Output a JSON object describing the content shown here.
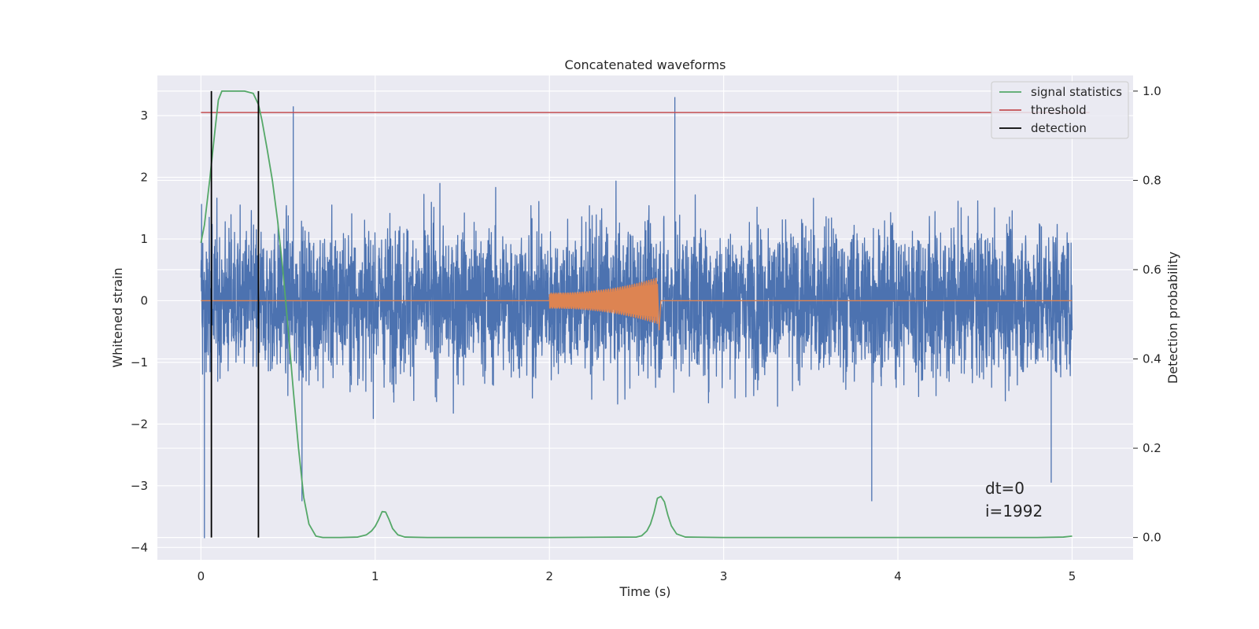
{
  "chart_data": {
    "type": "line",
    "title": "Concatenated waveforms",
    "xlabel": "Time (s)",
    "ylabel": "Whitened strain",
    "ylabel_right": "Detection probability",
    "xlim": [
      -0.25,
      5.35
    ],
    "ylim": [
      -4.2,
      3.65
    ],
    "ylim_right": [
      -0.05,
      1.035
    ],
    "x_ticks": [
      0,
      1,
      2,
      3,
      4,
      5
    ],
    "y_ticks": [
      3,
      2,
      1,
      0,
      -1,
      -2,
      -3,
      -4
    ],
    "y_tick_labels": [
      "3",
      "2",
      "1",
      "0",
      "−1",
      "−2",
      "−3",
      "−4"
    ],
    "y2_ticks": [
      1.0,
      0.8,
      0.6,
      0.4,
      0.2,
      0.0
    ],
    "y2_tick_labels": [
      "1.0",
      "0.8",
      "0.6",
      "0.4",
      "0.2",
      "0.0"
    ],
    "grid": true,
    "legend_position": "top-right",
    "series": [
      {
        "name": "",
        "kind": "noise",
        "color": "#4c72b0",
        "x_range": [
          0,
          5
        ],
        "approx_amplitude": 1.25,
        "extremes": [
          [
            0.02,
            -3.85
          ],
          [
            0.58,
            -3.25
          ],
          [
            0.53,
            3.15
          ],
          [
            2.72,
            3.3
          ],
          [
            3.07,
            0.75
          ],
          [
            3.85,
            -3.25
          ],
          [
            4.88,
            -2.95
          ]
        ]
      },
      {
        "name": "",
        "kind": "chirp",
        "color": "#dd8452",
        "x_range": [
          0,
          5
        ],
        "burst_start": 2.0,
        "burst_end": 2.62,
        "burst_peak": 0.38
      },
      {
        "name": "signal statistics",
        "axis": "right",
        "color": "#55a868",
        "x": [
          0.0,
          0.02,
          0.05,
          0.08,
          0.1,
          0.12,
          0.15,
          0.2,
          0.25,
          0.3,
          0.33,
          0.35,
          0.38,
          0.41,
          0.44,
          0.47,
          0.5,
          0.53,
          0.56,
          0.59,
          0.62,
          0.66,
          0.7,
          0.8,
          0.9,
          0.95,
          0.98,
          1.0,
          1.02,
          1.04,
          1.06,
          1.08,
          1.1,
          1.13,
          1.17,
          1.3,
          2.0,
          2.5,
          2.53,
          2.56,
          2.58,
          2.6,
          2.62,
          2.64,
          2.66,
          2.68,
          2.7,
          2.73,
          2.78,
          3.0,
          4.0,
          4.5,
          4.8,
          4.95,
          5.0
        ],
        "y": [
          0.66,
          0.7,
          0.8,
          0.91,
          0.98,
          1.0,
          1.0,
          1.0,
          1.0,
          0.995,
          0.97,
          0.935,
          0.87,
          0.8,
          0.71,
          0.6,
          0.47,
          0.33,
          0.2,
          0.09,
          0.03,
          0.003,
          0.0,
          0.0,
          0.001,
          0.006,
          0.015,
          0.025,
          0.04,
          0.058,
          0.057,
          0.04,
          0.02,
          0.006,
          0.001,
          0.0,
          0.0,
          0.001,
          0.004,
          0.015,
          0.03,
          0.055,
          0.088,
          0.092,
          0.08,
          0.05,
          0.026,
          0.008,
          0.001,
          0.0,
          0.0,
          0.0,
          0.0,
          0.001,
          0.003
        ]
      },
      {
        "name": "threshold",
        "axis": "right",
        "color": "#c44e52",
        "x": [
          0,
          5.1
        ],
        "y": [
          0.952,
          0.952
        ]
      },
      {
        "name": "detection",
        "axis": "right",
        "color": "#000000",
        "vlines": [
          0.06,
          0.33
        ],
        "ymin": 0.0,
        "ymax": 1.0
      }
    ],
    "annotations": [
      "dt=0",
      "i=1992"
    ]
  }
}
